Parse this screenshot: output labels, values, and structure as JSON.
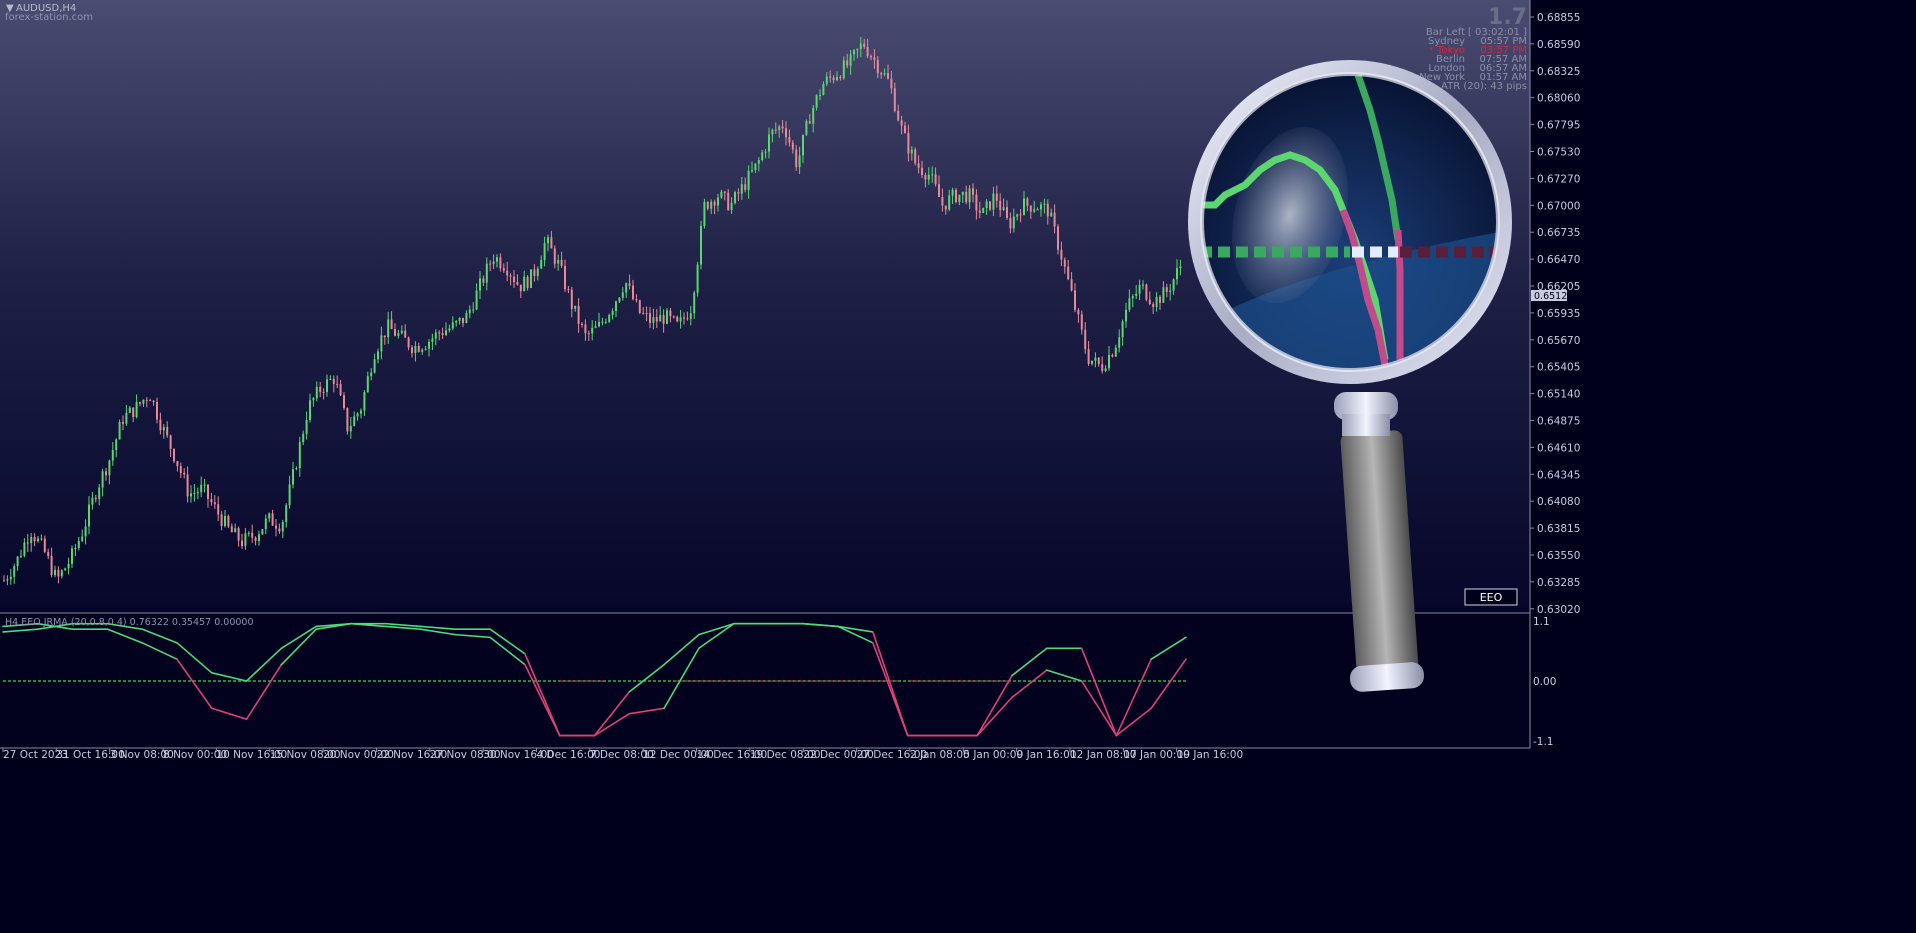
{
  "window": {
    "symbol_title": "AUDUSD,H4",
    "watermark": "forex-station.com"
  },
  "version_badge": "1.7",
  "info_panel": {
    "rows": [
      {
        "label": "Bar Left",
        "value": "[ 03:02:01 ]",
        "color": "#8a8fa6"
      },
      {
        "label": "Sydney",
        "value": "05:57 PM",
        "color": "#8a8fa6"
      },
      {
        "label": "* Tokyo",
        "value": "03:57 PM",
        "color": "#e0243a"
      },
      {
        "label": "Berlin",
        "value": "07:57 AM",
        "color": "#8a8fa6"
      },
      {
        "label": "London",
        "value": "06:57 AM",
        "color": "#8a8fa6"
      },
      {
        "label": "New York",
        "value": "01:57 AM",
        "color": "#8a8fa6"
      }
    ],
    "atr": "ATR (20): 43 pips"
  },
  "price_axis": {
    "ticks": [
      "0.68855",
      "0.68590",
      "0.68325",
      "0.68060",
      "0.67795",
      "0.67530",
      "0.67270",
      "0.67000",
      "0.66735",
      "0.66470",
      "0.66205",
      "0.65935",
      "0.65670",
      "0.65405",
      "0.65140",
      "0.64875",
      "0.64610",
      "0.64345",
      "0.64080",
      "0.63815",
      "0.63550",
      "0.63285",
      "0.63020"
    ],
    "current_price": "0.65122"
  },
  "indicator": {
    "label": "H4 EEO JRMA (20,0.8,0.4) 0.76322 0.35457 0.00000",
    "axis_ticks": [
      "1.1",
      "0.00",
      "-1.1"
    ],
    "button_label": "EEO"
  },
  "time_axis": {
    "ticks": [
      "27 Oct 2023",
      "31 Oct 16:00",
      "3 Nov 08:00",
      "8 Nov 00:00",
      "10 Nov 16:00",
      "15 Nov 08:00",
      "20 Nov 00:00",
      "22 Nov 16:00",
      "27 Nov 08:00",
      "30 Nov 16:00",
      "4 Dec 16:00",
      "7 Dec 08:00",
      "12 Dec 00:00",
      "14 Dec 16:00",
      "19 Dec 08:00",
      "22 Dec 00:00",
      "27 Dec 16:00",
      "2 Jan 08:00",
      "5 Jan 00:00",
      "9 Jan 16:00",
      "12 Jan 08:00",
      "17 Jan 00:00",
      "19 Jan 16:00"
    ]
  },
  "colors": {
    "bull": "#5cd670",
    "bear": "#e8899a",
    "osc_green": "#4ed97a",
    "osc_pink": "#e0407a",
    "zero_green": "#2db34a",
    "zero_red": "#a02040",
    "axis_text": "#c8cce0"
  },
  "chart_data": {
    "type": "candlestick",
    "price_path": [
      0.633,
      0.635,
      0.638,
      0.636,
      0.633,
      0.635,
      0.638,
      0.642,
      0.645,
      0.649,
      0.65,
      0.6515,
      0.648,
      0.645,
      0.6415,
      0.642,
      0.64,
      0.638,
      0.6368,
      0.6375,
      0.639,
      0.6385,
      0.644,
      0.65,
      0.652,
      0.653,
      0.648,
      0.65,
      0.6555,
      0.658,
      0.657,
      0.656,
      0.6565,
      0.6575,
      0.658,
      0.659,
      0.662,
      0.665,
      0.664,
      0.662,
      0.663,
      0.6665,
      0.664,
      0.66,
      0.657,
      0.658,
      0.66,
      0.6625,
      0.6595,
      0.6585,
      0.659,
      0.658,
      0.66,
      0.67,
      0.671,
      0.67,
      0.672,
      0.674,
      0.677,
      0.678,
      0.674,
      0.679,
      0.682,
      0.683,
      0.684,
      0.686,
      0.684,
      0.682,
      0.677,
      0.674,
      0.673,
      0.67,
      0.671,
      0.671,
      0.669,
      0.671,
      0.668,
      0.67,
      0.67,
      0.6695,
      0.665,
      0.66,
      0.655,
      0.654,
      0.656,
      0.66,
      0.662,
      0.6605,
      0.6615,
      0.664
    ],
    "oscillator": {
      "axis_range": [
        -1.1,
        1.1
      ],
      "series": [
        {
          "name": "EEO",
          "values": [
            0.9,
            0.95,
            1.05,
            1.05,
            0.95,
            0.7,
            0.15,
            0.0,
            0.6,
            1.0,
            1.05,
            1.05,
            1.0,
            0.95,
            0.95,
            0.5,
            -1.0,
            -1.0,
            -0.2,
            0.3,
            0.85,
            1.05,
            1.05,
            1.05,
            1.0,
            0.9,
            -1.0,
            -1.0,
            -1.0,
            0.1,
            0.6,
            0.6,
            -1.0,
            0.4,
            0.8
          ]
        },
        {
          "name": "JRMA",
          "values": [
            1.0,
            1.05,
            0.95,
            0.95,
            0.7,
            0.4,
            -0.5,
            -0.7,
            0.3,
            0.95,
            1.05,
            1.0,
            0.95,
            0.85,
            0.8,
            0.3,
            -1.0,
            -1.0,
            -0.6,
            -0.5,
            0.6,
            1.05,
            1.05,
            1.05,
            1.0,
            0.7,
            -1.0,
            -1.0,
            -1.0,
            -0.3,
            0.2,
            0.0,
            -1.0,
            -0.5,
            0.4
          ]
        }
      ]
    }
  }
}
